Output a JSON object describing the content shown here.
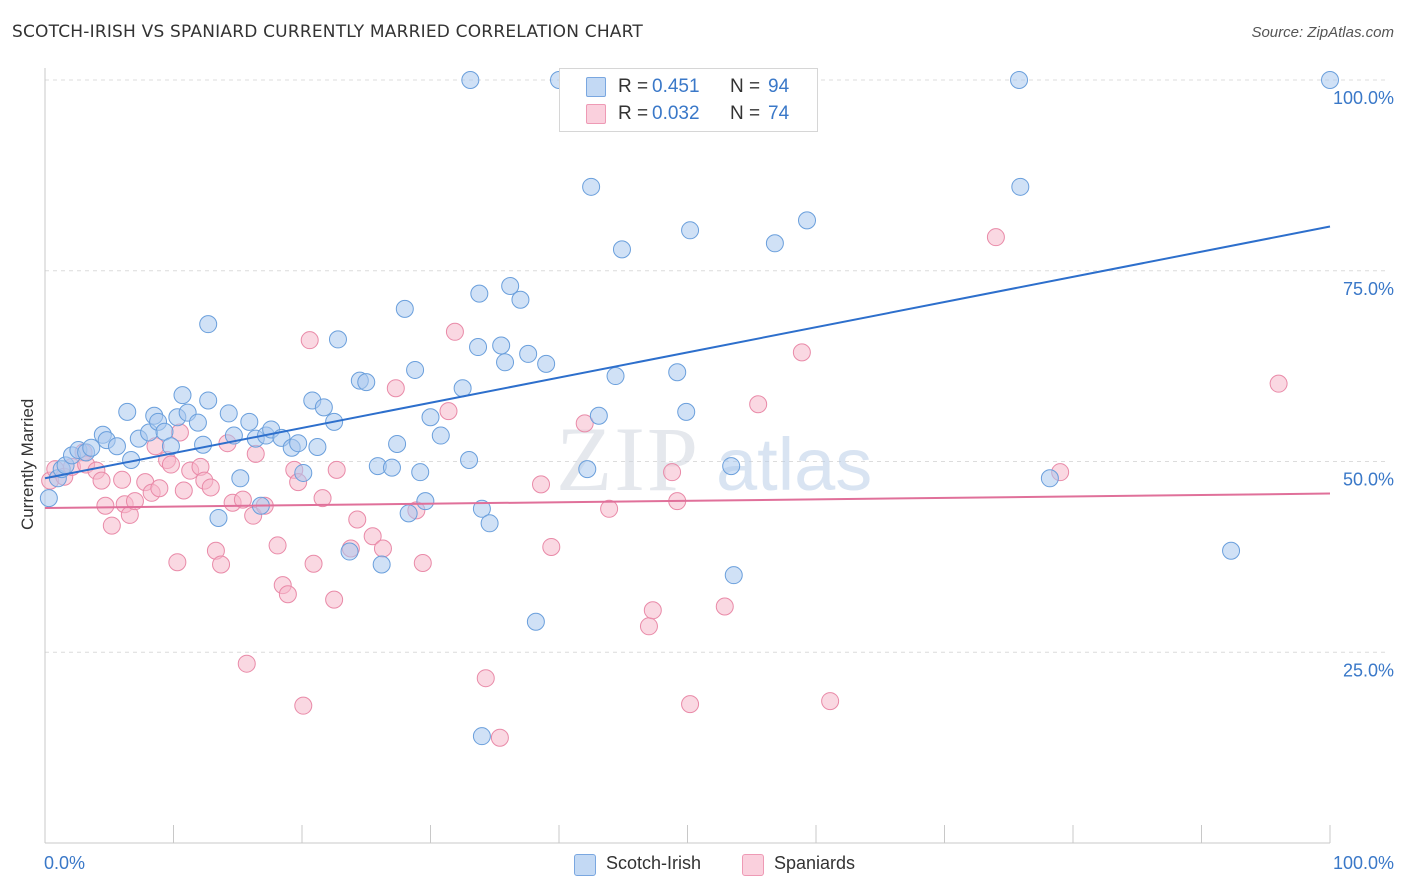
{
  "header": {
    "title": "SCOTCH-IRISH VS SPANIARD CURRENTLY MARRIED CORRELATION CHART",
    "source": "Source: ZipAtlas.com"
  },
  "watermark": {
    "zip": "ZIP",
    "atlas": "atlas"
  },
  "legend": {
    "r_label": "R =",
    "n_label": "N =",
    "rows": [
      {
        "r": "0.451",
        "n": "94",
        "color": "#a9c8ef"
      },
      {
        "r": "0.032",
        "n": "74",
        "color": "#f6b8cb"
      }
    ]
  },
  "bottom_legend": [
    {
      "label": "Scotch-Irish",
      "color": "#a9c8ef"
    },
    {
      "label": "Spaniards",
      "color": "#f6b8cb"
    }
  ],
  "chart_data": {
    "type": "scatter",
    "title": "SCOTCH-IRISH VS SPANIARD CURRENTLY MARRIED CORRELATION CHART",
    "xlabel": "",
    "ylabel": "Currently Married",
    "xlim": [
      0,
      100
    ],
    "ylim": [
      0,
      100
    ],
    "x_tick_labels": [
      "0.0%",
      "100.0%"
    ],
    "y_tick_labels": [
      "25.0%",
      "50.0%",
      "75.0%",
      "100.0%"
    ],
    "y_ticks": [
      25,
      50,
      75,
      100
    ],
    "grid": "horizontal dashed",
    "colors": {
      "blue_fill": "#a9c8ef",
      "blue_stroke": "#6a9fdc",
      "blue_line": "#2d6fcc",
      "pink_fill": "#f6b8cb",
      "pink_stroke": "#e98aa8",
      "pink_line": "#e0709a"
    },
    "series": [
      {
        "name": "Scotch-Irish",
        "trend": {
          "x": [
            0,
            100
          ],
          "y": [
            47.8,
            80.8
          ]
        },
        "points": [
          [
            0.3,
            45.2
          ],
          [
            1.0,
            47.8
          ],
          [
            1.3,
            49.0
          ],
          [
            1.6,
            49.5
          ],
          [
            2.1,
            50.8
          ],
          [
            2.6,
            51.5
          ],
          [
            3.2,
            51.2
          ],
          [
            3.6,
            51.8
          ],
          [
            4.5,
            53.5
          ],
          [
            4.8,
            52.8
          ],
          [
            5.6,
            52.0
          ],
          [
            6.4,
            56.5
          ],
          [
            6.7,
            50.2
          ],
          [
            7.3,
            53.0
          ],
          [
            8.1,
            53.8
          ],
          [
            8.5,
            56.0
          ],
          [
            8.8,
            55.2
          ],
          [
            9.3,
            53.9
          ],
          [
            9.8,
            52.0
          ],
          [
            10.3,
            55.8
          ],
          [
            10.7,
            58.7
          ],
          [
            11.1,
            56.4
          ],
          [
            11.9,
            55.1
          ],
          [
            12.3,
            52.2
          ],
          [
            12.7,
            58.0
          ],
          [
            13.5,
            42.6
          ],
          [
            14.3,
            56.3
          ],
          [
            14.7,
            53.4
          ],
          [
            15.2,
            47.8
          ],
          [
            15.9,
            55.2
          ],
          [
            16.4,
            53.0
          ],
          [
            16.8,
            44.2
          ],
          [
            17.2,
            53.4
          ],
          [
            17.6,
            54.2
          ],
          [
            18.4,
            53.1
          ],
          [
            19.2,
            51.8
          ],
          [
            19.7,
            52.4
          ],
          [
            20.1,
            48.5
          ],
          [
            20.8,
            58.0
          ],
          [
            21.2,
            51.9
          ],
          [
            21.7,
            57.1
          ],
          [
            22.5,
            55.2
          ],
          [
            22.8,
            66.0
          ],
          [
            23.7,
            38.2
          ],
          [
            24.5,
            60.6
          ],
          [
            25.0,
            60.4
          ],
          [
            25.9,
            49.4
          ],
          [
            26.2,
            36.5
          ],
          [
            27.0,
            49.2
          ],
          [
            27.4,
            52.3
          ],
          [
            28.0,
            70.0
          ],
          [
            28.3,
            43.2
          ],
          [
            28.8,
            62.0
          ],
          [
            29.2,
            48.6
          ],
          [
            29.6,
            44.8
          ],
          [
            30.0,
            55.8
          ],
          [
            30.8,
            53.4
          ],
          [
            32.5,
            59.6
          ],
          [
            33.0,
            50.2
          ],
          [
            33.7,
            65.0
          ],
          [
            33.8,
            72.0
          ],
          [
            34.0,
            43.8
          ],
          [
            34.6,
            41.9
          ],
          [
            35.5,
            65.2
          ],
          [
            35.8,
            63.0
          ],
          [
            36.2,
            73.0
          ],
          [
            37.0,
            71.2
          ],
          [
            37.6,
            64.1
          ],
          [
            38.2,
            29.0
          ],
          [
            39.0,
            62.8
          ],
          [
            42.2,
            49.0
          ],
          [
            42.5,
            86.0
          ],
          [
            43.1,
            56.0
          ],
          [
            44.4,
            61.2
          ],
          [
            44.9,
            77.8
          ],
          [
            49.2,
            61.7
          ],
          [
            49.9,
            56.5
          ],
          [
            50.2,
            80.3
          ],
          [
            53.4,
            49.4
          ],
          [
            53.6,
            35.1
          ],
          [
            56.8,
            78.6
          ],
          [
            59.3,
            81.6
          ],
          [
            75.8,
            100.0
          ],
          [
            75.9,
            86.0
          ],
          [
            78.2,
            47.8
          ],
          [
            92.3,
            38.3
          ],
          [
            100.0,
            100.0
          ],
          [
            40.0,
            100.0
          ],
          [
            33.1,
            100.0
          ],
          [
            34.0,
            14.0
          ],
          [
            50.0,
            100.0
          ],
          [
            12.7,
            68.0
          ]
        ]
      },
      {
        "name": "Spaniards",
        "trend": {
          "x": [
            0,
            100
          ],
          "y": [
            43.9,
            45.8
          ]
        },
        "points": [
          [
            0.4,
            47.5
          ],
          [
            0.8,
            49.0
          ],
          [
            1.5,
            48.0
          ],
          [
            2.1,
            49.3
          ],
          [
            3.0,
            51.2
          ],
          [
            3.2,
            49.6
          ],
          [
            4.0,
            48.8
          ],
          [
            4.4,
            47.5
          ],
          [
            4.7,
            44.2
          ],
          [
            5.2,
            41.6
          ],
          [
            6.0,
            47.6
          ],
          [
            6.2,
            44.4
          ],
          [
            6.6,
            43.0
          ],
          [
            7.0,
            44.8
          ],
          [
            7.8,
            47.3
          ],
          [
            8.3,
            45.9
          ],
          [
            8.6,
            52.0
          ],
          [
            8.9,
            46.5
          ],
          [
            9.5,
            50.2
          ],
          [
            9.8,
            49.6
          ],
          [
            10.5,
            53.8
          ],
          [
            10.3,
            36.8
          ],
          [
            10.8,
            46.2
          ],
          [
            11.3,
            48.8
          ],
          [
            12.1,
            49.3
          ],
          [
            12.4,
            47.5
          ],
          [
            12.9,
            46.6
          ],
          [
            13.3,
            38.3
          ],
          [
            13.7,
            36.5
          ],
          [
            14.2,
            52.4
          ],
          [
            14.6,
            44.6
          ],
          [
            15.4,
            45.0
          ],
          [
            15.7,
            23.5
          ],
          [
            16.2,
            42.9
          ],
          [
            16.4,
            51.0
          ],
          [
            17.1,
            44.2
          ],
          [
            18.1,
            39.0
          ],
          [
            18.5,
            33.8
          ],
          [
            18.9,
            32.6
          ],
          [
            19.4,
            48.9
          ],
          [
            19.7,
            47.3
          ],
          [
            20.1,
            18.0
          ],
          [
            20.9,
            36.6
          ],
          [
            20.6,
            65.9
          ],
          [
            21.6,
            45.2
          ],
          [
            22.5,
            31.9
          ],
          [
            22.7,
            48.9
          ],
          [
            23.8,
            38.6
          ],
          [
            24.3,
            42.4
          ],
          [
            25.5,
            40.2
          ],
          [
            26.3,
            38.6
          ],
          [
            27.3,
            59.6
          ],
          [
            28.9,
            43.6
          ],
          [
            29.4,
            36.7
          ],
          [
            31.4,
            56.6
          ],
          [
            31.9,
            67.0
          ],
          [
            34.3,
            21.6
          ],
          [
            35.4,
            13.8
          ],
          [
            38.6,
            47.0
          ],
          [
            39.4,
            38.8
          ],
          [
            42.0,
            55.0
          ],
          [
            43.9,
            43.8
          ],
          [
            47.0,
            28.4
          ],
          [
            47.3,
            30.5
          ],
          [
            48.8,
            48.6
          ],
          [
            49.2,
            44.8
          ],
          [
            50.2,
            18.2
          ],
          [
            52.9,
            31.0
          ],
          [
            55.5,
            57.5
          ],
          [
            58.9,
            64.3
          ],
          [
            61.1,
            18.6
          ],
          [
            74.0,
            79.4
          ],
          [
            79.0,
            48.6
          ],
          [
            96.0,
            60.2
          ]
        ]
      }
    ]
  }
}
